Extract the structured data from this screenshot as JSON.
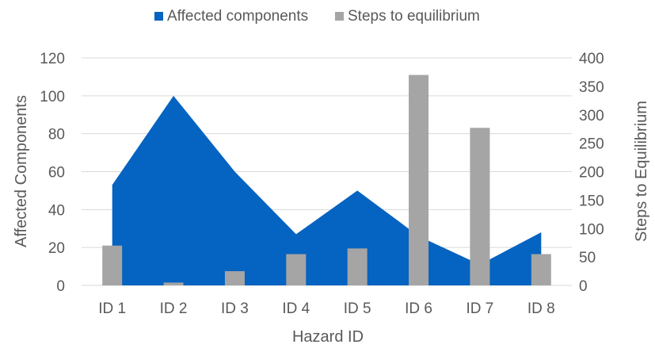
{
  "colors": {
    "area": "#0563C1",
    "bar": "#A5A5A5",
    "grid": "#D9D9D9",
    "text": "#595959",
    "background": "#FFFFFF"
  },
  "chart_data": {
    "type": "area",
    "categories": [
      "ID 1",
      "ID 2",
      "ID 3",
      "ID 4",
      "ID 5",
      "ID 6",
      "ID 7",
      "ID 8"
    ],
    "series": [
      {
        "name": "Affected components",
        "type": "area",
        "axis": "left",
        "values": [
          53,
          100,
          60,
          27,
          50,
          26,
          11,
          28
        ]
      },
      {
        "name": "Steps to equilibrium",
        "type": "bar",
        "axis": "right",
        "values": [
          70,
          5,
          25,
          55,
          65,
          370,
          277,
          55
        ]
      }
    ],
    "xlabel": "Hazard ID",
    "ylabel": "Affected Components",
    "y2label": "Steps to Equilibrium",
    "ylim": [
      0,
      120
    ],
    "y2lim": [
      0,
      400
    ],
    "yticks": [
      "0",
      "20",
      "40",
      "60",
      "80",
      "100",
      "120"
    ],
    "y2ticks": [
      "0",
      "50",
      "100",
      "150",
      "200",
      "250",
      "300",
      "350",
      "400"
    ],
    "grid": true,
    "legend_position": "top"
  }
}
